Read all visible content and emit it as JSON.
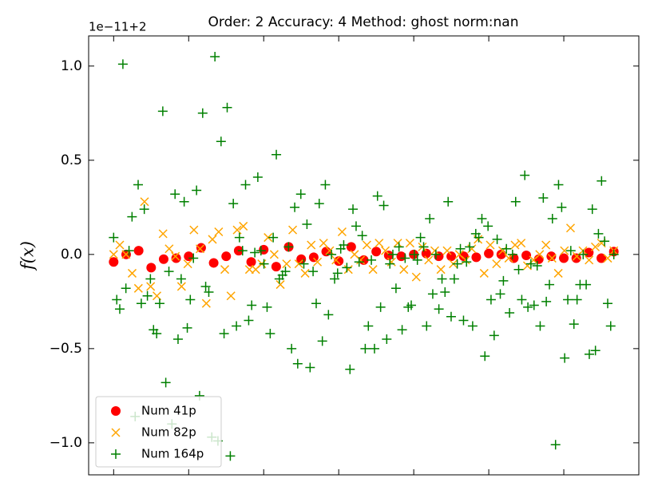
{
  "chart_data": {
    "type": "scatter",
    "title": "Order: 2 Accuracy: 4 Method: ghost norm:nan",
    "y_offset_text": "1e−11+2",
    "ylabel": "f(x)",
    "xlim": [
      -2,
      42
    ],
    "xticks": [
      0,
      6,
      12,
      18,
      24,
      30,
      36
    ],
    "ylim": [
      -1.17,
      1.16
    ],
    "yticks": [
      {
        "value": -1.0,
        "label": "−1.0"
      },
      {
        "value": -0.5,
        "label": "−0.5"
      },
      {
        "value": 0.0,
        "label": "0.0"
      },
      0.5,
      {
        "value": 1.0,
        "label": "1.0"
      }
    ],
    "legend": "lower left",
    "series": [
      {
        "name": "Num 41p",
        "color": "#ff0000",
        "marker": "o",
        "x": [
          0,
          1,
          2,
          3,
          4,
          5,
          6,
          7,
          8,
          9,
          10,
          11,
          12,
          13,
          14,
          15,
          16,
          17,
          18,
          19,
          20,
          21,
          22,
          23,
          24,
          25,
          26,
          27,
          28,
          29,
          30,
          31,
          32,
          33,
          34,
          35,
          36,
          37,
          38,
          39,
          40
        ],
        "values": [
          -0.04,
          0.0,
          0.02,
          -0.07,
          -0.025,
          -0.02,
          -0.01,
          0.035,
          -0.045,
          -0.01,
          0.02,
          -0.04,
          0.025,
          -0.065,
          0.04,
          -0.025,
          -0.015,
          0.015,
          -0.035,
          0.04,
          -0.03,
          0.015,
          -0.005,
          -0.01,
          0.0,
          0.005,
          -0.01,
          -0.01,
          -0.01,
          -0.015,
          0.005,
          0.0,
          -0.02,
          -0.005,
          -0.025,
          -0.01,
          -0.02,
          -0.02,
          0.01,
          -0.02,
          0.015
        ]
      },
      {
        "name": "Num 82p",
        "color": "#ffa500",
        "marker": "x",
        "x": [
          0,
          0.49,
          0.99,
          1.48,
          1.98,
          2.47,
          2.96,
          3.46,
          3.95,
          4.44,
          4.94,
          5.43,
          5.93,
          6.42,
          6.91,
          7.41,
          7.9,
          8.4,
          8.89,
          9.38,
          9.88,
          10.37,
          10.86,
          11.36,
          11.85,
          12.35,
          12.84,
          13.33,
          13.83,
          14.32,
          14.81,
          15.31,
          15.8,
          16.3,
          16.79,
          17.28,
          17.78,
          18.27,
          18.77,
          19.26,
          19.75,
          20.25,
          20.74,
          21.23,
          21.73,
          22.22,
          22.72,
          23.21,
          23.7,
          24.2,
          24.69,
          25.19,
          25.68,
          26.17,
          26.67,
          27.16,
          27.65,
          28.15,
          28.64,
          29.14,
          29.63,
          30.12,
          30.62,
          31.11,
          31.6,
          32.1,
          32.59,
          33.09,
          33.58,
          34.07,
          34.57,
          35.06,
          35.56,
          36.05,
          36.54,
          37.04,
          37.53,
          38.02,
          38.52,
          39.01,
          39.51,
          40
        ],
        "values": [
          0.0,
          0.05,
          0.0,
          -0.1,
          -0.18,
          0.28,
          -0.17,
          -0.22,
          0.11,
          0.03,
          -0.01,
          -0.17,
          -0.05,
          0.13,
          0.03,
          -0.26,
          0.08,
          0.12,
          -0.08,
          -0.22,
          0.13,
          0.15,
          -0.08,
          -0.08,
          -0.05,
          0.09,
          0.0,
          -0.16,
          -0.05,
          0.13,
          -0.05,
          -0.1,
          0.05,
          -0.04,
          0.06,
          0.02,
          -0.03,
          0.12,
          -0.08,
          0.0,
          -0.03,
          0.05,
          -0.08,
          0.06,
          0.02,
          -0.04,
          0.06,
          -0.08,
          0.06,
          -0.12,
          0.04,
          -0.03,
          0.02,
          -0.08,
          0.02,
          -0.05,
          0.0,
          -0.03,
          0.03,
          0.08,
          -0.1,
          0.05,
          -0.05,
          0.02,
          -0.02,
          0.05,
          0.06,
          -0.06,
          -0.03,
          0.0,
          0.05,
          -0.02,
          -0.1,
          0.02,
          0.14,
          -0.01,
          0.02,
          -0.03,
          0.04,
          0.06,
          -0.02,
          0.02
        ]
      },
      {
        "name": "Num 164p",
        "color": "#008000",
        "marker": "+",
        "x": [
          0,
          0.25,
          0.49,
          0.74,
          0.98,
          1.23,
          1.47,
          1.72,
          1.96,
          2.21,
          2.45,
          2.7,
          2.94,
          3.19,
          3.44,
          3.68,
          3.93,
          4.17,
          4.42,
          4.66,
          4.91,
          5.15,
          5.4,
          5.64,
          5.89,
          6.13,
          6.38,
          6.63,
          6.87,
          7.12,
          7.36,
          7.61,
          7.85,
          8.1,
          8.34,
          8.59,
          8.83,
          9.08,
          9.33,
          9.57,
          9.82,
          10.06,
          10.31,
          10.55,
          10.8,
          11.04,
          11.29,
          11.53,
          11.78,
          12.02,
          12.27,
          12.52,
          12.76,
          13.01,
          13.25,
          13.5,
          13.74,
          13.99,
          14.23,
          14.48,
          14.72,
          14.97,
          15.21,
          15.46,
          15.71,
          15.95,
          16.2,
          16.44,
          16.69,
          16.93,
          17.18,
          17.42,
          17.67,
          17.91,
          18.16,
          18.4,
          18.65,
          18.9,
          19.14,
          19.39,
          19.63,
          19.88,
          20.12,
          20.37,
          20.61,
          20.86,
          21.1,
          21.35,
          21.6,
          21.84,
          22.09,
          22.33,
          22.58,
          22.82,
          23.07,
          23.31,
          23.56,
          23.8,
          24.05,
          24.29,
          24.54,
          24.79,
          25.03,
          25.28,
          25.52,
          25.77,
          26.01,
          26.26,
          26.5,
          26.75,
          26.99,
          27.24,
          27.48,
          27.73,
          27.98,
          28.22,
          28.47,
          28.71,
          28.96,
          29.2,
          29.45,
          29.69,
          29.94,
          30.18,
          30.43,
          30.67,
          30.92,
          31.17,
          31.41,
          31.66,
          31.9,
          32.15,
          32.39,
          32.64,
          32.88,
          33.13,
          33.37,
          33.62,
          33.87,
          34.11,
          34.36,
          34.6,
          34.85,
          35.09,
          35.34,
          35.58,
          35.83,
          36.07,
          36.32,
          36.56,
          36.81,
          37.06,
          37.3,
          37.55,
          37.79,
          38.04,
          38.28,
          38.53,
          38.77,
          39.02,
          39.26,
          39.51,
          39.75,
          40
        ],
        "values": [
          0.09,
          -0.24,
          -0.29,
          1.01,
          -0.18,
          0.02,
          0.2,
          -0.86,
          0.37,
          -0.26,
          0.24,
          -0.22,
          -0.13,
          -0.4,
          -0.42,
          -0.26,
          0.76,
          -0.68,
          -0.09,
          -0.9,
          0.32,
          -0.45,
          -0.13,
          0.28,
          -0.39,
          -0.24,
          -0.02,
          0.34,
          -0.75,
          0.75,
          -0.17,
          -0.2,
          -0.97,
          1.05,
          -0.99,
          0.6,
          -0.42,
          0.78,
          -1.07,
          0.27,
          -0.38,
          0.09,
          0.02,
          0.37,
          -0.35,
          -0.27,
          0.01,
          0.41,
          0.02,
          -0.05,
          -0.28,
          -0.42,
          0.09,
          0.53,
          -0.13,
          -0.11,
          -0.09,
          0.04,
          -0.5,
          0.25,
          -0.58,
          0.32,
          -0.05,
          0.16,
          -0.6,
          -0.09,
          -0.26,
          0.27,
          -0.46,
          0.37,
          -0.32,
          0.0,
          -0.13,
          -0.1,
          0.03,
          0.05,
          -0.07,
          -0.61,
          0.24,
          0.15,
          -0.04,
          0.1,
          -0.5,
          -0.38,
          -0.03,
          -0.5,
          0.31,
          -0.28,
          0.26,
          -0.45,
          -0.05,
          0.0,
          -0.18,
          0.04,
          -0.4,
          -0.02,
          -0.28,
          -0.27,
          0.0,
          -0.03,
          0.09,
          0.04,
          -0.38,
          0.19,
          -0.21,
          0.0,
          -0.29,
          -0.13,
          -0.2,
          0.28,
          -0.33,
          -0.13,
          -0.05,
          0.03,
          -0.35,
          -0.04,
          0.04,
          -0.38,
          0.11,
          0.09,
          0.19,
          -0.54,
          0.15,
          -0.24,
          -0.43,
          0.08,
          -0.21,
          -0.14,
          0.03,
          -0.31,
          0.0,
          0.28,
          -0.08,
          -0.24,
          0.42,
          -0.28,
          -0.05,
          -0.27,
          -0.06,
          -0.38,
          0.3,
          -0.25,
          -0.16,
          0.19,
          -1.01,
          0.37,
          0.25,
          -0.55,
          -0.24,
          0.02,
          -0.37,
          -0.24,
          -0.16,
          0.0,
          -0.16,
          -0.53,
          0.24,
          -0.51,
          0.11,
          0.39,
          0.07,
          -0.26,
          -0.38,
          0.0
        ]
      }
    ]
  }
}
